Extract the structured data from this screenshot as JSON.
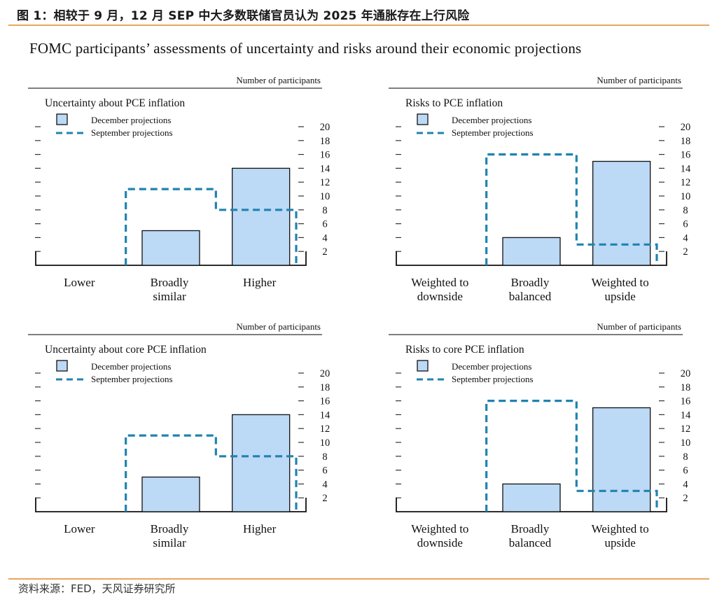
{
  "figure_title": "图 1：相较于 9 月，12 月 SEP 中大多数联储官员认为 2025 年通胀存在上行风险",
  "subtitle": "FOMC participants’ assessments of uncertainty and risks around their economic projections",
  "source": "资料来源：FED，天风证券研究所",
  "colors": {
    "bar_fill": "#bcd9f6",
    "bar_stroke": "#111111",
    "dash": "#1f83b0",
    "rule": "#e8a65e"
  },
  "chart_data": [
    {
      "type": "bar",
      "title": "Uncertainty about PCE inflation",
      "ylabel": "Number of participants",
      "categories": [
        [
          "Lower"
        ],
        [
          "Broadly",
          "similar"
        ],
        [
          "Higher"
        ]
      ],
      "series": [
        {
          "name": "December projections",
          "style": "bar",
          "values": [
            0,
            5,
            14
          ]
        },
        {
          "name": "September projections",
          "style": "dashed-step",
          "values": [
            0,
            11,
            8
          ]
        }
      ],
      "ylim": [
        0,
        20
      ],
      "yticks": [
        2,
        4,
        6,
        8,
        10,
        12,
        14,
        16,
        18,
        20
      ]
    },
    {
      "type": "bar",
      "title": "Risks to PCE inflation",
      "ylabel": "Number of participants",
      "categories": [
        [
          "Weighted to",
          "downside"
        ],
        [
          "Broadly",
          "balanced"
        ],
        [
          "Weighted to",
          "upside"
        ]
      ],
      "series": [
        {
          "name": "December projections",
          "style": "bar",
          "values": [
            0,
            4,
            15
          ]
        },
        {
          "name": "September projections",
          "style": "dashed-step",
          "values": [
            0,
            16,
            3
          ]
        }
      ],
      "ylim": [
        0,
        20
      ],
      "yticks": [
        2,
        4,
        6,
        8,
        10,
        12,
        14,
        16,
        18,
        20
      ]
    },
    {
      "type": "bar",
      "title": "Uncertainty about core PCE inflation",
      "ylabel": "Number of participants",
      "categories": [
        [
          "Lower"
        ],
        [
          "Broadly",
          "similar"
        ],
        [
          "Higher"
        ]
      ],
      "series": [
        {
          "name": "December projections",
          "style": "bar",
          "values": [
            0,
            5,
            14
          ]
        },
        {
          "name": "September projections",
          "style": "dashed-step",
          "values": [
            0,
            11,
            8
          ]
        }
      ],
      "ylim": [
        0,
        20
      ],
      "yticks": [
        2,
        4,
        6,
        8,
        10,
        12,
        14,
        16,
        18,
        20
      ]
    },
    {
      "type": "bar",
      "title": "Risks to core PCE inflation",
      "ylabel": "Number of participants",
      "categories": [
        [
          "Weighted to",
          "downside"
        ],
        [
          "Broadly",
          "balanced"
        ],
        [
          "Weighted to",
          "upside"
        ]
      ],
      "series": [
        {
          "name": "December projections",
          "style": "bar",
          "values": [
            0,
            4,
            15
          ]
        },
        {
          "name": "September projections",
          "style": "dashed-step",
          "values": [
            0,
            16,
            3
          ]
        }
      ],
      "ylim": [
        0,
        20
      ],
      "yticks": [
        2,
        4,
        6,
        8,
        10,
        12,
        14,
        16,
        18,
        20
      ]
    }
  ]
}
